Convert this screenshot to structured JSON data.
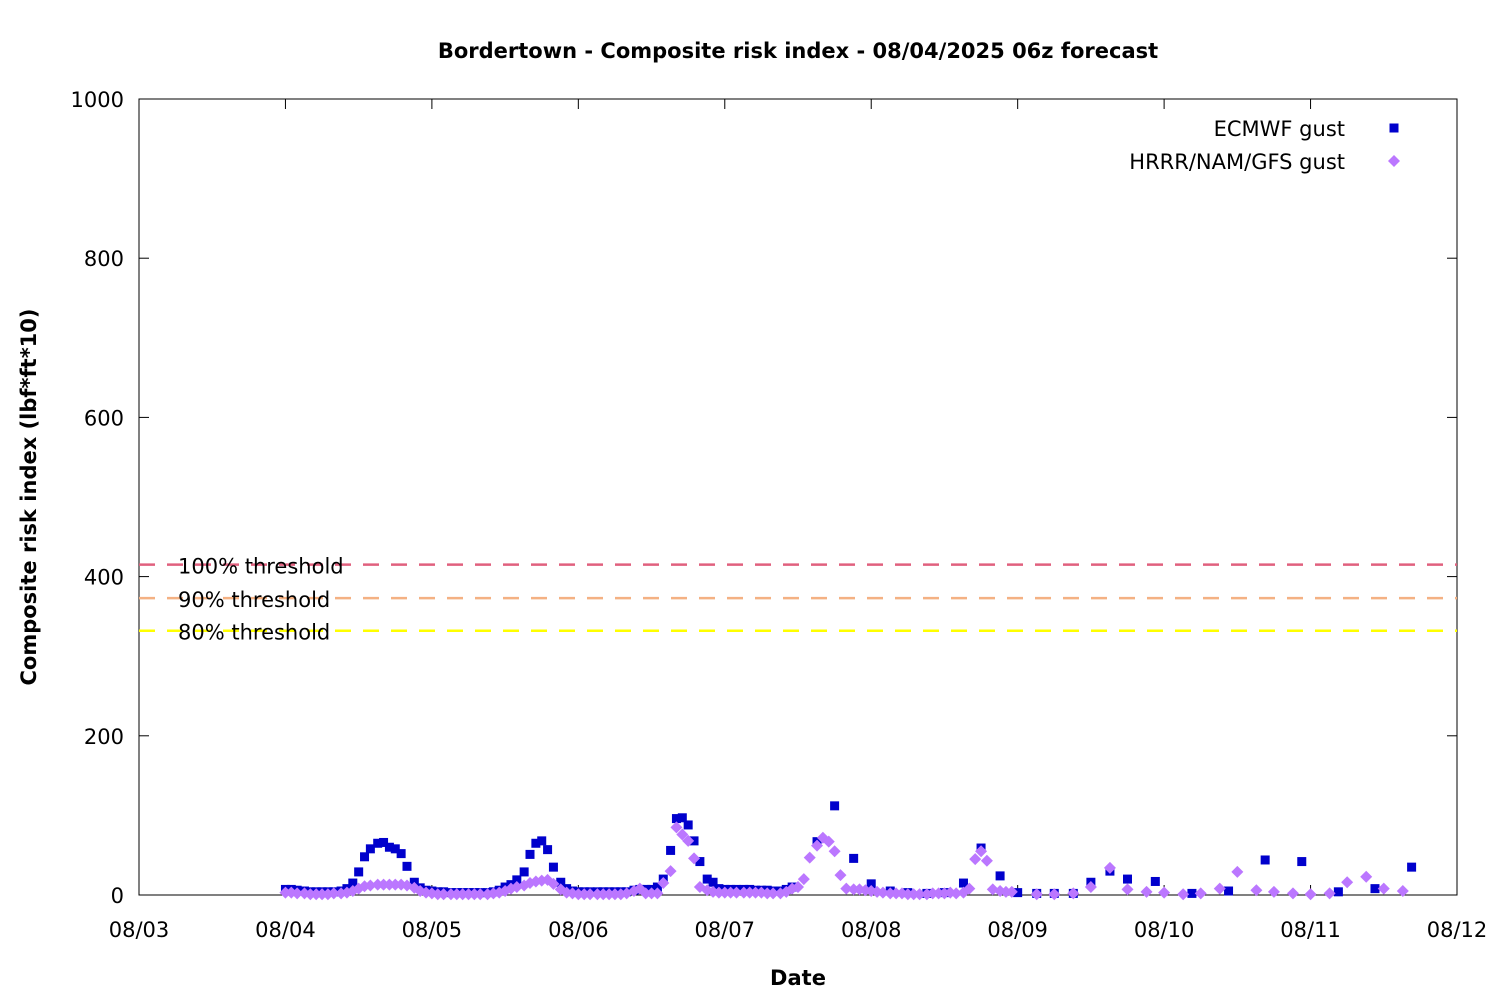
{
  "chart_data": {
    "type": "scatter",
    "title": "Bordertown - Composite risk index - 08/04/2025 06z forecast",
    "xlabel": "Date",
    "ylabel": "Composite risk index (lbf*ft*10)",
    "xlim": [
      "08/03",
      "08/12"
    ],
    "ylim": [
      0,
      1000
    ],
    "x_ticks": [
      "08/03",
      "08/04",
      "08/05",
      "08/06",
      "08/07",
      "08/08",
      "08/09",
      "08/10",
      "08/11",
      "08/12"
    ],
    "y_ticks": [
      0,
      200,
      400,
      600,
      800,
      1000
    ],
    "legend_position": "top-right",
    "grid": false,
    "thresholds": [
      {
        "label": "100% threshold",
        "value": 415,
        "color": "#e0607e"
      },
      {
        "label": "90% threshold",
        "value": 373,
        "color": "#f4b183"
      },
      {
        "label": "80% threshold",
        "value": 332,
        "color": "#ffff00"
      }
    ],
    "series": [
      {
        "name": "ECMWF gust",
        "marker": "square",
        "color": "#0000cc",
        "points": [
          [
            0.0,
            7
          ],
          [
            0.04,
            7
          ],
          [
            0.08,
            6
          ],
          [
            0.13,
            5
          ],
          [
            0.17,
            4
          ],
          [
            0.21,
            4
          ],
          [
            0.25,
            4
          ],
          [
            0.29,
            4
          ],
          [
            0.33,
            4
          ],
          [
            0.38,
            5
          ],
          [
            0.42,
            8
          ],
          [
            0.46,
            15
          ],
          [
            0.5,
            29
          ],
          [
            0.54,
            48
          ],
          [
            0.58,
            58
          ],
          [
            0.63,
            65
          ],
          [
            0.67,
            66
          ],
          [
            0.71,
            60
          ],
          [
            0.75,
            58
          ],
          [
            0.79,
            52
          ],
          [
            0.83,
            36
          ],
          [
            0.88,
            16
          ],
          [
            0.92,
            9
          ],
          [
            0.96,
            6
          ],
          [
            1.0,
            5
          ],
          [
            1.04,
            4
          ],
          [
            1.08,
            4
          ],
          [
            1.13,
            3
          ],
          [
            1.17,
            3
          ],
          [
            1.21,
            3
          ],
          [
            1.25,
            3
          ],
          [
            1.29,
            3
          ],
          [
            1.33,
            3
          ],
          [
            1.38,
            3
          ],
          [
            1.42,
            4
          ],
          [
            1.46,
            6
          ],
          [
            1.5,
            10
          ],
          [
            1.54,
            13
          ],
          [
            1.58,
            19
          ],
          [
            1.63,
            29
          ],
          [
            1.67,
            51
          ],
          [
            1.71,
            65
          ],
          [
            1.75,
            68
          ],
          [
            1.79,
            57
          ],
          [
            1.83,
            35
          ],
          [
            1.88,
            16
          ],
          [
            1.92,
            8
          ],
          [
            1.96,
            5
          ],
          [
            2.0,
            4
          ],
          [
            2.04,
            4
          ],
          [
            2.08,
            4
          ],
          [
            2.13,
            4
          ],
          [
            2.17,
            4
          ],
          [
            2.21,
            4
          ],
          [
            2.25,
            4
          ],
          [
            2.29,
            4
          ],
          [
            2.33,
            4
          ],
          [
            2.38,
            6
          ],
          [
            2.42,
            7
          ],
          [
            2.46,
            7
          ],
          [
            2.5,
            7
          ],
          [
            2.54,
            10
          ],
          [
            2.58,
            20
          ],
          [
            2.63,
            56
          ],
          [
            2.67,
            96
          ],
          [
            2.71,
            97
          ],
          [
            2.75,
            88
          ],
          [
            2.79,
            68
          ],
          [
            2.83,
            42
          ],
          [
            2.88,
            20
          ],
          [
            2.92,
            16
          ],
          [
            2.96,
            8
          ],
          [
            3.0,
            7
          ],
          [
            3.04,
            7
          ],
          [
            3.08,
            7
          ],
          [
            3.13,
            7
          ],
          [
            3.17,
            7
          ],
          [
            3.21,
            6
          ],
          [
            3.25,
            6
          ],
          [
            3.29,
            6
          ],
          [
            3.33,
            5
          ],
          [
            3.38,
            5
          ],
          [
            3.42,
            7
          ],
          [
            3.46,
            10
          ],
          [
            3.63,
            67
          ],
          [
            3.75,
            112
          ],
          [
            3.88,
            46
          ],
          [
            4.0,
            14
          ],
          [
            4.13,
            5
          ],
          [
            4.25,
            3
          ],
          [
            4.38,
            2
          ],
          [
            4.5,
            3
          ],
          [
            4.63,
            15
          ],
          [
            4.75,
            59
          ],
          [
            4.88,
            24
          ],
          [
            5.0,
            3
          ],
          [
            5.13,
            2
          ],
          [
            5.25,
            2
          ],
          [
            5.38,
            2
          ],
          [
            5.5,
            16
          ],
          [
            5.63,
            30
          ],
          [
            5.75,
            20
          ],
          [
            5.94,
            17
          ],
          [
            6.19,
            2
          ],
          [
            6.44,
            5
          ],
          [
            6.69,
            44
          ],
          [
            6.94,
            42
          ],
          [
            7.19,
            4
          ],
          [
            7.44,
            8
          ],
          [
            7.69,
            35
          ]
        ]
      },
      {
        "name": "HRRR/NAM/GFS gust",
        "marker": "diamond",
        "color": "#bb77ff",
        "points": [
          [
            0.0,
            3
          ],
          [
            0.04,
            3
          ],
          [
            0.08,
            2
          ],
          [
            0.13,
            2
          ],
          [
            0.17,
            1
          ],
          [
            0.21,
            1
          ],
          [
            0.25,
            1
          ],
          [
            0.29,
            1
          ],
          [
            0.33,
            2
          ],
          [
            0.38,
            2
          ],
          [
            0.42,
            3
          ],
          [
            0.46,
            5
          ],
          [
            0.5,
            8
          ],
          [
            0.54,
            11
          ],
          [
            0.58,
            12
          ],
          [
            0.63,
            13
          ],
          [
            0.67,
            13
          ],
          [
            0.71,
            13
          ],
          [
            0.75,
            13
          ],
          [
            0.79,
            13
          ],
          [
            0.83,
            12
          ],
          [
            0.88,
            9
          ],
          [
            0.92,
            5
          ],
          [
            0.96,
            3
          ],
          [
            1.0,
            2
          ],
          [
            1.04,
            1
          ],
          [
            1.08,
            1
          ],
          [
            1.13,
            1
          ],
          [
            1.17,
            1
          ],
          [
            1.21,
            1
          ],
          [
            1.25,
            1
          ],
          [
            1.29,
            1
          ],
          [
            1.33,
            1
          ],
          [
            1.38,
            1
          ],
          [
            1.42,
            2
          ],
          [
            1.46,
            3
          ],
          [
            1.5,
            5
          ],
          [
            1.54,
            8
          ],
          [
            1.58,
            10
          ],
          [
            1.63,
            12
          ],
          [
            1.67,
            15
          ],
          [
            1.71,
            17
          ],
          [
            1.75,
            18
          ],
          [
            1.79,
            19
          ],
          [
            1.83,
            14
          ],
          [
            1.88,
            7
          ],
          [
            1.92,
            3
          ],
          [
            1.96,
            2
          ],
          [
            2.0,
            1
          ],
          [
            2.04,
            1
          ],
          [
            2.08,
            1
          ],
          [
            2.13,
            1
          ],
          [
            2.17,
            1
          ],
          [
            2.21,
            1
          ],
          [
            2.25,
            1
          ],
          [
            2.29,
            1
          ],
          [
            2.33,
            2
          ],
          [
            2.38,
            5
          ],
          [
            2.42,
            8
          ],
          [
            2.46,
            2
          ],
          [
            2.5,
            2
          ],
          [
            2.54,
            2
          ],
          [
            2.58,
            15
          ],
          [
            2.63,
            30
          ],
          [
            2.67,
            85
          ],
          [
            2.71,
            76
          ],
          [
            2.75,
            68
          ],
          [
            2.79,
            46
          ],
          [
            2.83,
            10
          ],
          [
            2.88,
            6
          ],
          [
            2.92,
            4
          ],
          [
            2.96,
            3
          ],
          [
            3.0,
            3
          ],
          [
            3.04,
            3
          ],
          [
            3.08,
            3
          ],
          [
            3.13,
            3
          ],
          [
            3.17,
            3
          ],
          [
            3.21,
            3
          ],
          [
            3.25,
            3
          ],
          [
            3.29,
            2
          ],
          [
            3.33,
            2
          ],
          [
            3.38,
            2
          ],
          [
            3.42,
            4
          ],
          [
            3.46,
            8
          ],
          [
            3.5,
            10
          ],
          [
            3.54,
            20
          ],
          [
            3.58,
            47
          ],
          [
            3.63,
            62
          ],
          [
            3.67,
            72
          ],
          [
            3.71,
            67
          ],
          [
            3.75,
            55
          ],
          [
            3.79,
            25
          ],
          [
            3.83,
            8
          ],
          [
            3.88,
            7
          ],
          [
            3.92,
            7
          ],
          [
            3.96,
            6
          ],
          [
            4.0,
            5
          ],
          [
            4.04,
            4
          ],
          [
            4.08,
            3
          ],
          [
            4.13,
            2
          ],
          [
            4.17,
            2
          ],
          [
            4.21,
            2
          ],
          [
            4.25,
            1
          ],
          [
            4.29,
            1
          ],
          [
            4.33,
            1
          ],
          [
            4.38,
            1
          ],
          [
            4.42,
            2
          ],
          [
            4.46,
            2
          ],
          [
            4.5,
            2
          ],
          [
            4.54,
            3
          ],
          [
            4.58,
            2
          ],
          [
            4.63,
            3
          ],
          [
            4.67,
            8
          ],
          [
            4.71,
            45
          ],
          [
            4.75,
            55
          ],
          [
            4.79,
            43
          ],
          [
            4.83,
            7
          ],
          [
            4.88,
            5
          ],
          [
            4.92,
            4
          ],
          [
            4.96,
            4
          ],
          [
            5.13,
            1
          ],
          [
            5.25,
            1
          ],
          [
            5.38,
            2
          ],
          [
            5.5,
            10
          ],
          [
            5.63,
            34
          ],
          [
            5.75,
            7
          ],
          [
            5.88,
            4
          ],
          [
            6.0,
            3
          ],
          [
            6.13,
            1
          ],
          [
            6.25,
            2
          ],
          [
            6.38,
            8
          ],
          [
            6.5,
            29
          ],
          [
            6.63,
            6
          ],
          [
            6.75,
            4
          ],
          [
            6.88,
            2
          ],
          [
            7.0,
            1
          ],
          [
            7.13,
            2
          ],
          [
            7.25,
            16
          ],
          [
            7.38,
            23
          ],
          [
            7.5,
            8
          ],
          [
            7.63,
            5
          ]
        ]
      }
    ]
  }
}
